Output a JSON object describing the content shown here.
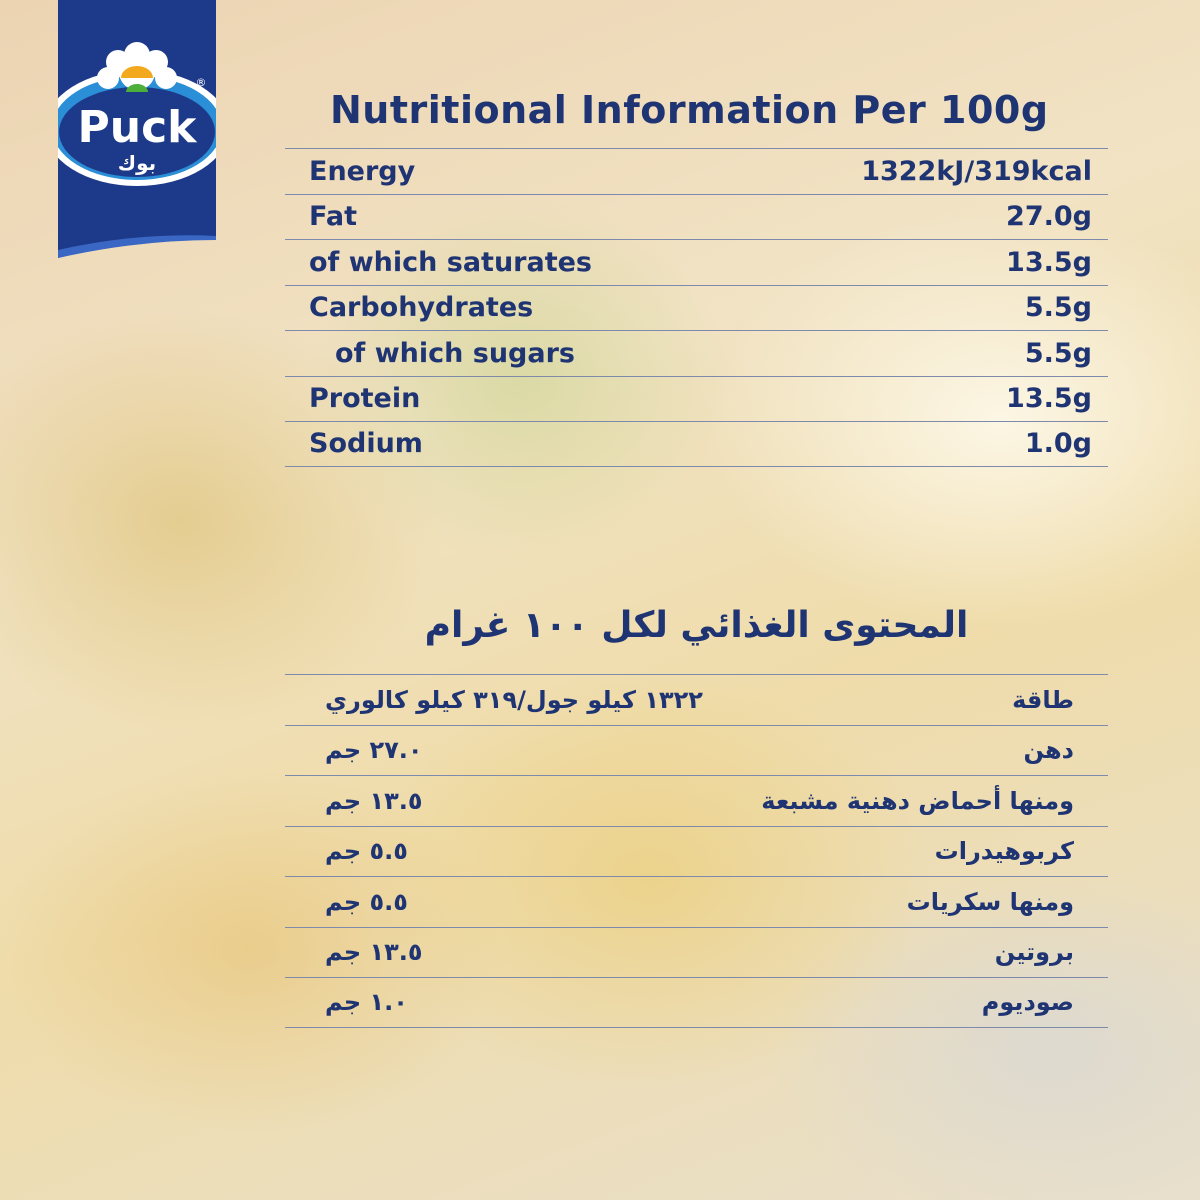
{
  "brand": {
    "name": "Puck",
    "name_ar": "بوك",
    "registered": "®",
    "colors": {
      "blue": "#1d3a8a",
      "text": "#1f3473"
    }
  },
  "english": {
    "title": "Nutritional Information Per 100g",
    "rows": [
      {
        "label": "Energy",
        "value": "1322kJ/319kcal"
      },
      {
        "label": "Fat",
        "value": "27.0g"
      },
      {
        "label": "of which saturates",
        "value": "13.5g"
      },
      {
        "label": "Carbohydrates",
        "value": "5.5g"
      },
      {
        "label": "of which sugars",
        "value": "5.5g"
      },
      {
        "label": "Protein",
        "value": "13.5g"
      },
      {
        "label": "Sodium",
        "value": "1.0g"
      }
    ]
  },
  "arabic": {
    "title": "المحتوى الغذائي لكل ١٠٠ غرام",
    "rows": [
      {
        "label": "طاقة",
        "value": "١٣٢٢ كيلو جول/٣١٩ كيلو كالوري"
      },
      {
        "label": "دهن",
        "value": "٢٧.٠ جم"
      },
      {
        "label": "ومنها أحماض دهنية مشبعة",
        "value": "١٣.٥ جم"
      },
      {
        "label": "كربوهيدرات",
        "value": "٥.٥ جم"
      },
      {
        "label": "ومنها سكريات",
        "value": "٥.٥ جم"
      },
      {
        "label": "بروتين",
        "value": "١٣.٥ جم"
      },
      {
        "label": "صوديوم",
        "value": "١.٠ جم"
      }
    ]
  }
}
